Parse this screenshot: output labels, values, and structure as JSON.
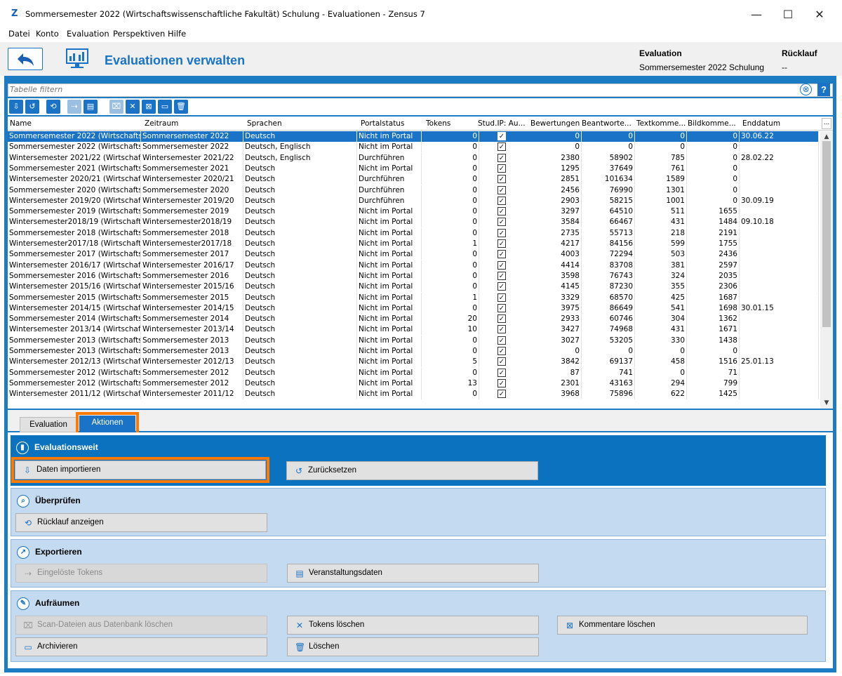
{
  "window": {
    "title": "Sommersemester 2022 (Wirtschaftswissenschaftliche Fakultät) Schulung - Evaluationen - Zensus 7",
    "logo": "Z",
    "minimize": "—",
    "maximize": "☐",
    "close": "✕"
  },
  "menu": [
    "Datei",
    "Konto",
    "Evaluation",
    "Perspektiven",
    "Hilfe"
  ],
  "header": {
    "page_title": "Evaluationen verwalten",
    "evaluation_label": "Evaluation",
    "evaluation_value": "Sommersemester 2022 Schulung",
    "ruecklauf_label": "Rücklauf",
    "ruecklauf_value": "--"
  },
  "filter": {
    "placeholder": "Tabelle filtern",
    "clear": "⊗",
    "help": "?"
  },
  "table": {
    "columns": [
      "Name",
      "Zeitraum",
      "Sprachen",
      "Portalstatus",
      "Tokens",
      "Stud.IP: Au...",
      "Bewertungen",
      "Beantworte...",
      "Textkomme...",
      "Bildkomme...",
      "Enddatum"
    ],
    "more": "...",
    "rows": [
      [
        "Sommersemester 2022 (Wirtschafts...",
        "Sommersemester 2022",
        "Deutsch",
        "Nicht im Portal",
        "0",
        "✓",
        "0",
        "0",
        "0",
        "0",
        "30.06.22"
      ],
      [
        "Sommersemester 2022 (Wirtschafts...",
        "Sommersemester 2022",
        "Deutsch, Englisch",
        "Nicht im Portal",
        "0",
        "✓",
        "0",
        "0",
        "0",
        "0",
        ""
      ],
      [
        "Wintersemester 2021/22 (Wirtschaft...",
        "Wintersemester 2021/22",
        "Deutsch, Englisch",
        "Durchführen",
        "0",
        "✓",
        "2380",
        "58902",
        "785",
        "0",
        "28.02.22"
      ],
      [
        "Sommersemester 2021 (Wirtschafts...",
        "Sommersemester 2021",
        "Deutsch",
        "Nicht im Portal",
        "0",
        "✓",
        "1295",
        "37649",
        "761",
        "0",
        ""
      ],
      [
        "Wintersemester 2020/21 (Wirtschaft...",
        "Wintersemester 2020/21",
        "Deutsch",
        "Durchführen",
        "0",
        "✓",
        "2851",
        "101634",
        "1589",
        "0",
        ""
      ],
      [
        "Sommersemester 2020 (Wirtschafts...",
        "Sommersemester 2020",
        "Deutsch",
        "Durchführen",
        "0",
        "✓",
        "2456",
        "76990",
        "1301",
        "0",
        ""
      ],
      [
        "Wintersemester 2019/20 (Wirtschaft...",
        "Wintersemester 2019/20",
        "Deutsch",
        "Durchführen",
        "0",
        "✓",
        "2903",
        "58215",
        "1001",
        "0",
        "30.09.19"
      ],
      [
        "Sommersemester 2019 (Wirtschafts...",
        "Sommersemester 2019",
        "Deutsch",
        "Nicht im Portal",
        "0",
        "✓",
        "3297",
        "64510",
        "511",
        "1655",
        ""
      ],
      [
        "Wintersemester2018/19 (Wirtschaft...",
        "Wintersemester2018/19",
        "Deutsch",
        "Nicht im Portal",
        "0",
        "✓",
        "3584",
        "66467",
        "431",
        "1484",
        "09.10.18"
      ],
      [
        "Sommersemester 2018 (Wirtschafts...",
        "Sommersemester 2018",
        "Deutsch",
        "Nicht im Portal",
        "0",
        "✓",
        "2735",
        "55713",
        "218",
        "2191",
        ""
      ],
      [
        "Wintersemester2017/18 (Wirtschaft...",
        "Wintersemester2017/18",
        "Deutsch",
        "Nicht im Portal",
        "1",
        "✓",
        "4217",
        "84156",
        "599",
        "1755",
        ""
      ],
      [
        "Sommersemester 2017 (Wirtschafts...",
        "Sommersemester 2017",
        "Deutsch",
        "Nicht im Portal",
        "0",
        "✓",
        "4003",
        "72294",
        "503",
        "2436",
        ""
      ],
      [
        "Wintersemester 2016/17 (Wirtschaft...",
        "Wintersemester 2016/17",
        "Deutsch",
        "Nicht im Portal",
        "0",
        "✓",
        "4414",
        "83708",
        "381",
        "2597",
        ""
      ],
      [
        "Sommersemester 2016 (Wirtschafts...",
        "Sommersemester 2016",
        "Deutsch",
        "Nicht im Portal",
        "0",
        "✓",
        "3598",
        "76743",
        "324",
        "2035",
        ""
      ],
      [
        "Wintersemester 2015/16 (Wirtschaft...",
        "Wintersemester 2015/16",
        "Deutsch",
        "Nicht im Portal",
        "0",
        "✓",
        "4145",
        "87230",
        "355",
        "2306",
        ""
      ],
      [
        "Sommersemester 2015 (Wirtschafts...",
        "Sommersemester 2015",
        "Deutsch",
        "Nicht im Portal",
        "1",
        "✓",
        "3329",
        "68570",
        "425",
        "1687",
        ""
      ],
      [
        "Wintersemester 2014/15 (Wirtschaft...",
        "Wintersemester 2014/15",
        "Deutsch",
        "Nicht im Portal",
        "0",
        "✓",
        "3975",
        "86649",
        "541",
        "1698",
        "30.01.15"
      ],
      [
        "Sommersemester 2014 (Wirtschafts...",
        "Sommersemester 2014",
        "Deutsch",
        "Nicht im Portal",
        "20",
        "✓",
        "2933",
        "60746",
        "304",
        "1362",
        ""
      ],
      [
        "Wintersemester 2013/14 (Wirtschaft...",
        "Wintersemester 2013/14",
        "Deutsch",
        "Nicht im Portal",
        "10",
        "✓",
        "3427",
        "74968",
        "431",
        "1671",
        ""
      ],
      [
        "Sommersemester 2013 (Wirtschafts...",
        "Sommersemester 2013",
        "Deutsch",
        "Nicht im Portal",
        "0",
        "✓",
        "3027",
        "53205",
        "330",
        "1438",
        ""
      ],
      [
        "Sommersemester 2013 (Wirtschafts...",
        "Sommersemester 2013",
        "Deutsch",
        "Nicht im Portal",
        "0",
        "✓",
        "0",
        "0",
        "0",
        "0",
        ""
      ],
      [
        "Wintersemester 2012/13 (Wirtschaft...",
        "Wintersemester 2012/13",
        "Deutsch",
        "Nicht im Portal",
        "5",
        "✓",
        "3842",
        "69137",
        "458",
        "1516",
        "25.01.13"
      ],
      [
        "Sommersemester 2012 (Wirtschafts...",
        "Sommersemester 2012",
        "Deutsch",
        "Nicht im Portal",
        "0",
        "✓",
        "87",
        "741",
        "0",
        "71",
        ""
      ],
      [
        "Sommersemester 2012 (Wirtschafts...",
        "Sommersemester 2012",
        "Deutsch",
        "Nicht im Portal",
        "13",
        "✓",
        "2301",
        "43163",
        "294",
        "799",
        ""
      ],
      [
        "Wintersemester 2011/12 (Wirtschaft...",
        "Wintersemester 2011/12",
        "Deutsch",
        "Nicht im Portal",
        "0",
        "✓",
        "3968",
        "75896",
        "622",
        "1425",
        ""
      ]
    ]
  },
  "tabs": [
    "Evaluation",
    "Aktionen"
  ],
  "sections": {
    "evaluationsweit": {
      "title": "Evaluationsweit",
      "import": "Daten importieren",
      "reset": "Zurücksetzen"
    },
    "ueberpruefen": {
      "title": "Überprüfen",
      "ruecklauf": "Rücklauf anzeigen"
    },
    "exportieren": {
      "title": "Exportieren",
      "tokens": "Eingelöste Tokens",
      "veranstaltung": "Veranstaltungsdaten"
    },
    "aufraeumen": {
      "title": "Aufräumen",
      "scan": "Scan-Dateien aus Datenbank löschen",
      "tokens_del": "Tokens löschen",
      "kommentare": "Kommentare löschen",
      "archivieren": "Archivieren",
      "loeschen": "Löschen"
    }
  },
  "colors": {
    "accent": "#1a73c7",
    "highlight": "#ff7a00",
    "section_bg": "#c4daf0"
  }
}
